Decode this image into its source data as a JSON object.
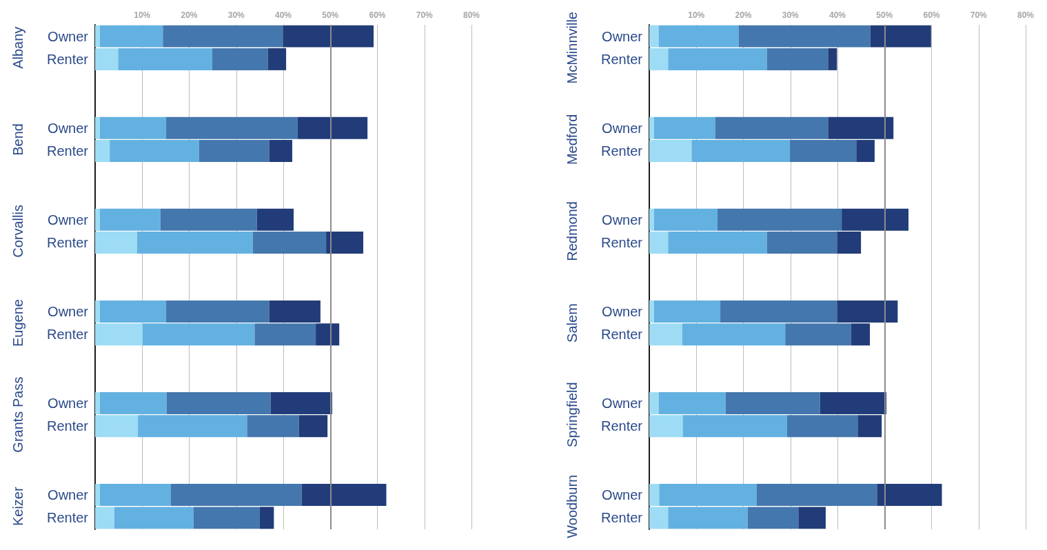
{
  "chart_data": [
    {
      "type": "bar",
      "orientation": "horizontal",
      "stacked": true,
      "grid": "x",
      "categories": [
        "Owner",
        "Renter",
        null,
        null,
        "Owner",
        "Renter",
        null,
        null,
        "Owner",
        "Renter",
        null,
        null,
        "Owner",
        "Renter",
        null,
        null,
        "Owner",
        "Renter",
        null,
        null,
        "Owner",
        "Renter"
      ],
      "annotations": [
        "Albany",
        "Bend",
        "Corvallis",
        "Eugene",
        "Grants Pass",
        "Keizer"
      ],
      "xlim": [
        0,
        80
      ],
      "xticks": [
        {
          "value": 10,
          "label": "10%"
        },
        {
          "value": 20,
          "label": "20%"
        },
        {
          "value": 30,
          "label": "30%"
        },
        {
          "value": 40,
          "label": "40%"
        },
        {
          "value": 50,
          "label": "50%"
        },
        {
          "value": 60,
          "label": "60%"
        },
        {
          "value": 70,
          "label": "70%"
        },
        {
          "value": 80,
          "label": "80%"
        }
      ],
      "ref_lines": [
        {
          "axis": "x",
          "value": 50,
          "color": "#8c8c8c"
        }
      ],
      "series": [
        {
          "color": "#9ddcf4",
          "values": [
            1,
            4.9,
            null,
            null,
            1,
            3.1,
            null,
            null,
            1,
            8.9,
            null,
            null,
            1,
            10.1,
            null,
            null,
            1,
            9.1,
            null,
            null,
            1,
            4.1
          ]
        },
        {
          "color": "#63b1e1",
          "values": [
            13.4,
            20,
            null,
            null,
            14.1,
            19,
            null,
            null,
            12.9,
            24.6,
            null,
            null,
            14.1,
            23.8,
            null,
            null,
            14.2,
            23.2,
            null,
            null,
            15.1,
            16.8
          ]
        },
        {
          "color": "#4477ad",
          "values": [
            25.5,
            11.8,
            null,
            null,
            27.9,
            14.9,
            null,
            null,
            20.5,
            15.6,
            null,
            null,
            21.9,
            13,
            null,
            null,
            22.1,
            11,
            null,
            null,
            27.8,
            14.1
          ]
        },
        {
          "color": "#213c78",
          "values": [
            19.3,
            3.9,
            null,
            null,
            14.9,
            4.9,
            null,
            null,
            7.8,
            7.9,
            null,
            null,
            10.9,
            5,
            null,
            null,
            13.1,
            6.1,
            null,
            null,
            18,
            3
          ]
        }
      ]
    },
    {
      "type": "bar",
      "orientation": "horizontal",
      "stacked": true,
      "grid": "x",
      "categories": [
        "Owner",
        "Renter",
        null,
        null,
        "Owner",
        "Renter",
        null,
        null,
        "Owner",
        "Renter",
        null,
        null,
        "Owner",
        "Renter",
        null,
        null,
        "Owner",
        "Renter",
        null,
        null,
        "Owner",
        "Renter"
      ],
      "annotations": [
        "McMinnville",
        "Medford",
        "Redmond",
        "Salem",
        "Springfield",
        "Woodburn"
      ],
      "xlim": [
        0,
        80
      ],
      "xticks": [
        {
          "value": 10,
          "label": "10%"
        },
        {
          "value": 20,
          "label": "20%"
        },
        {
          "value": 30,
          "label": "30%"
        },
        {
          "value": 40,
          "label": "40%"
        },
        {
          "value": 50,
          "label": "50%"
        },
        {
          "value": 60,
          "label": "60%"
        },
        {
          "value": 70,
          "label": "70%"
        },
        {
          "value": 80,
          "label": "80%"
        }
      ],
      "ref_lines": [
        {
          "axis": "x",
          "value": 50,
          "color": "#8c8c8c"
        }
      ],
      "series": [
        {
          "color": "#9ddcf4",
          "values": [
            2,
            4,
            null,
            null,
            1,
            9,
            null,
            null,
            1,
            4,
            null,
            null,
            1,
            7,
            null,
            null,
            2,
            7.1,
            null,
            null,
            2.1,
            4
          ]
        },
        {
          "color": "#63b1e1",
          "values": [
            17,
            21,
            null,
            null,
            13,
            20.9,
            null,
            null,
            13.5,
            21,
            null,
            null,
            14.1,
            21.9,
            null,
            null,
            14.2,
            22.2,
            null,
            null,
            20.7,
            16.9
          ]
        },
        {
          "color": "#4477ad",
          "values": [
            28,
            13,
            null,
            null,
            24,
            14.1,
            null,
            null,
            26.4,
            14.9,
            null,
            null,
            24.8,
            14,
            null,
            null,
            20.1,
            15,
            null,
            null,
            25.6,
            10.8
          ]
        },
        {
          "color": "#213c78",
          "values": [
            12.9,
            1.9,
            null,
            null,
            13.9,
            3.9,
            null,
            null,
            14.2,
            5.1,
            null,
            null,
            12.9,
            4,
            null,
            null,
            14.1,
            5.1,
            null,
            null,
            13.8,
            5.8
          ]
        }
      ]
    }
  ]
}
